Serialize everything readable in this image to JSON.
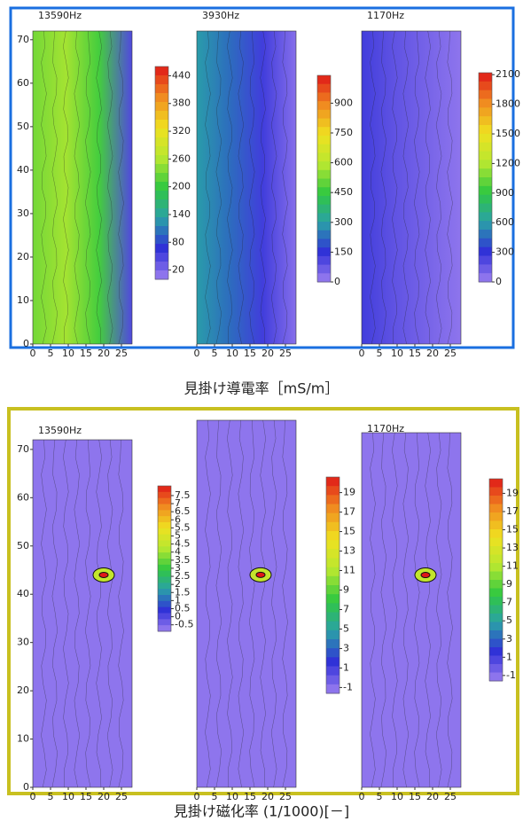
{
  "captions": [
    "見掛け導電率［mS/m］",
    "見掛け磁化率 (1/1000)[－]"
  ],
  "colormap": [
    "#9d80f0",
    "#3030d8",
    "#2aa0a8",
    "#30c840",
    "#b8e830",
    "#f0e020",
    "#f08a20",
    "#e01818"
  ],
  "chart_data": [
    {
      "type": "contour",
      "title": "13590Hz",
      "xlim": [
        0,
        28
      ],
      "xticks": [
        0,
        5,
        10,
        15,
        20,
        25
      ],
      "ylim": [
        0,
        72
      ],
      "yticks": [
        0,
        10,
        20,
        30,
        40,
        50,
        60,
        70
      ],
      "colorbar_lim": [
        0,
        460
      ],
      "colorbar_ticks": [
        20,
        80,
        140,
        200,
        260,
        320,
        380,
        440
      ]
    },
    {
      "type": "contour",
      "title": "3930Hz",
      "xlim": [
        0,
        28
      ],
      "xticks": [
        0,
        5,
        10,
        15,
        20,
        25
      ],
      "ylim": [
        0,
        72
      ],
      "colorbar_lim": [
        0,
        1040
      ],
      "colorbar_ticks": [
        0,
        150,
        300,
        450,
        600,
        750,
        900
      ]
    },
    {
      "type": "contour",
      "title": "1170Hz",
      "xlim": [
        0,
        28
      ],
      "xticks": [
        0,
        5,
        10,
        15,
        20,
        25
      ],
      "ylim": [
        0,
        72
      ],
      "colorbar_lim": [
        0,
        2120
      ],
      "colorbar_ticks": [
        0,
        300,
        600,
        900,
        1200,
        1500,
        1800,
        2100
      ]
    },
    {
      "type": "contour",
      "title": "13590Hz",
      "xlim": [
        0,
        28
      ],
      "xticks": [
        0,
        5,
        10,
        15,
        20,
        25
      ],
      "ylim": [
        0,
        72
      ],
      "yticks": [
        0,
        10,
        20,
        30,
        40,
        50,
        60,
        70
      ],
      "colorbar_lim": [
        -0.9,
        8.1
      ],
      "colorbar_ticks": [
        -0.5,
        0,
        0.5,
        1,
        1.5,
        2,
        2.5,
        3,
        3.5,
        4,
        4.5,
        5,
        5.5,
        6,
        6.5,
        7,
        7.5
      ]
    },
    {
      "type": "contour",
      "title": "3930Hz",
      "xlim": [
        0,
        28
      ],
      "xticks": [
        0,
        5,
        10,
        15,
        20,
        25
      ],
      "ylim": [
        0,
        76
      ],
      "colorbar_lim": [
        -1.6,
        20.6
      ],
      "colorbar_ticks": [
        -1,
        1,
        3,
        5,
        7,
        9,
        11,
        13,
        15,
        17,
        19
      ]
    },
    {
      "type": "contour",
      "title": "1170Hz",
      "xlim": [
        0,
        28
      ],
      "xticks": [
        0,
        5,
        10,
        15,
        20,
        25
      ],
      "ylim": [
        0,
        73.5
      ],
      "colorbar_lim": [
        -1.6,
        20.6
      ],
      "colorbar_ticks": [
        -1,
        1,
        3,
        5,
        7,
        9,
        11,
        13,
        15,
        17,
        19
      ]
    }
  ]
}
